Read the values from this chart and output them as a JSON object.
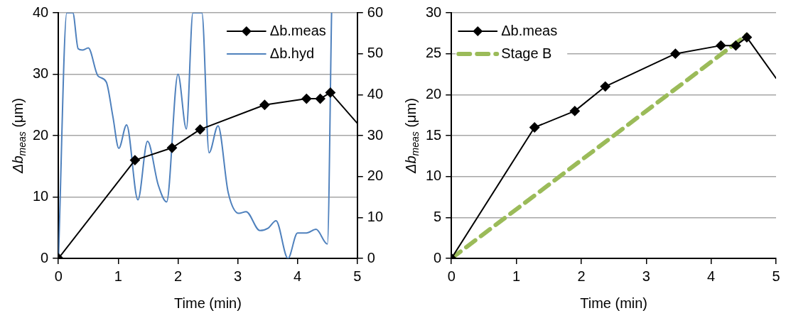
{
  "chart_data": [
    {
      "type": "line",
      "xlabel": "Time (min)",
      "ylabel": "Δb$_{meas}$ (μm)",
      "xlim": [
        0,
        5
      ],
      "xticks": [
        0,
        1,
        2,
        3,
        4,
        5
      ],
      "ylim": [
        0,
        40
      ],
      "yticks": [
        0,
        10,
        20,
        30,
        40
      ],
      "y2lim": [
        0,
        60
      ],
      "y2ticks": [
        0,
        10,
        20,
        30,
        40,
        50,
        60
      ],
      "grid": "y",
      "legend": "top right",
      "series": [
        {
          "name": "Δb.meas",
          "color": "#000000",
          "marker": "diamond",
          "x": [
            0,
            1.28,
            1.9,
            2.37,
            3.45,
            4.15,
            4.38,
            4.55,
            5
          ],
          "values": [
            0,
            16,
            18,
            21,
            25,
            26,
            26,
            27,
            22
          ]
        },
        {
          "name": "Δb.hyd",
          "color": "#4f81bd",
          "marker": "none",
          "axis": "y2",
          "x": [
            0,
            0.14,
            0.24,
            0.33,
            0.4,
            0.5,
            0.66,
            0.8,
            0.91,
            1.01,
            1.14,
            1.33,
            1.49,
            1.67,
            1.81,
            2.0,
            2.14,
            2.25,
            2.4,
            2.52,
            2.67,
            2.84,
            3.02,
            3.14,
            3.37,
            3.51,
            3.64,
            3.84,
            4.0,
            4.15,
            4.31,
            4.5,
            4.57
          ],
          "values": [
            0,
            60,
            60,
            51.2,
            50.9,
            51.4,
            44.6,
            43.1,
            34.7,
            26.9,
            32.6,
            14.3,
            28.6,
            17.9,
            13.8,
            45,
            31.6,
            60,
            60,
            25.8,
            32.4,
            16.1,
            11,
            11.4,
            6.8,
            7.4,
            9.2,
            0,
            6.2,
            6.2,
            7.1,
            3.5,
            60
          ]
        }
      ]
    },
    {
      "type": "line",
      "xlabel": "Time (min)",
      "ylabel": "Δb$_{meas}$ (μm)",
      "xlim": [
        0,
        5
      ],
      "xticks": [
        0,
        1,
        2,
        3,
        4,
        5
      ],
      "ylim": [
        0,
        30
      ],
      "yticks": [
        0,
        5,
        10,
        15,
        20,
        25,
        30
      ],
      "grid": "y",
      "legend": "top left",
      "series": [
        {
          "name": "Δb.meas",
          "color": "#000000",
          "marker": "diamond",
          "x": [
            0,
            1.28,
            1.9,
            2.37,
            3.45,
            4.15,
            4.38,
            4.55,
            5
          ],
          "values": [
            0,
            16,
            18,
            21,
            25,
            26,
            26,
            27,
            22
          ]
        },
        {
          "name": "Stage B",
          "color": "#9bbb59",
          "marker": "none",
          "line_style": "dashed",
          "x": [
            0,
            4.55
          ],
          "values": [
            0,
            27.3
          ]
        }
      ]
    }
  ]
}
